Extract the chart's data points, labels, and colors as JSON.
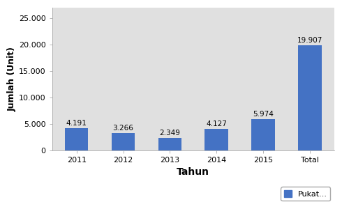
{
  "categories": [
    "2011",
    "2012",
    "2013",
    "2014",
    "2015",
    "Total"
  ],
  "values": [
    4191,
    3266,
    2349,
    4127,
    5974,
    19907
  ],
  "bar_color": "#4472C4",
  "bar_labels": [
    "4.191",
    "3.266",
    "2.349",
    "4.127",
    "5.974",
    "19.907"
  ],
  "xlabel": "Tahun",
  "ylabel": "Jumlah (Unit)",
  "ylim": [
    0,
    27000
  ],
  "yticks": [
    0,
    5000,
    10000,
    15000,
    20000,
    25000
  ],
  "ytick_labels": [
    "0",
    "5.000",
    "10.000",
    "15.000",
    "20.000",
    "25.000"
  ],
  "legend_label": "Pukat...",
  "background_color": "#ffffff",
  "plot_bg_color": "#e0e0e0",
  "label_fontsize": 7.5,
  "axis_fontsize": 8,
  "ylabel_fontsize": 9,
  "xlabel_fontsize": 10,
  "legend_fontsize": 8
}
